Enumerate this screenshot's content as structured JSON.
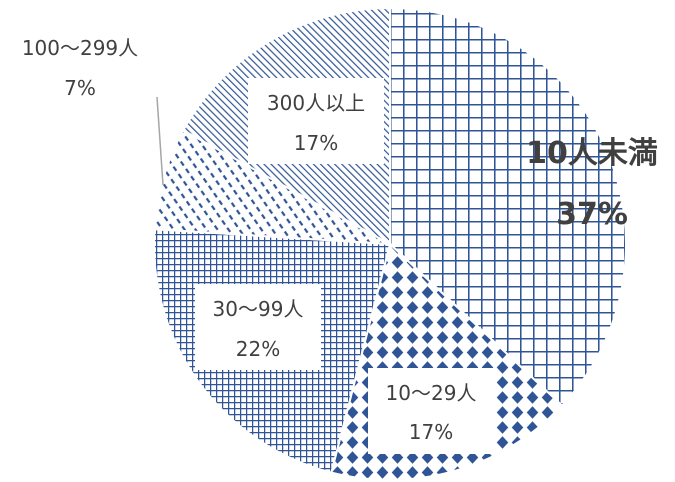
{
  "chart_data": {
    "type": "pie",
    "title": "",
    "start_angle_deg": 0,
    "direction": "clockwise",
    "slices": [
      {
        "name": "10人未満",
        "label": "10人未満",
        "value": 37,
        "value_label": "37%",
        "pattern": "grid-large",
        "color": "#2f5597"
      },
      {
        "name": "10〜29人",
        "label": "10〜29人",
        "value": 17,
        "value_label": "17%",
        "pattern": "diamonds",
        "color": "#2f5597"
      },
      {
        "name": "30〜99人",
        "label": "30〜99人",
        "value": 22,
        "value_label": "22%",
        "pattern": "grid-small",
        "color": "#2f5597"
      },
      {
        "name": "100〜299人",
        "label": "100〜299人",
        "value": 7,
        "value_label": "7%",
        "pattern": "dashes",
        "color": "#2f5597"
      },
      {
        "name": "300人以上",
        "label": "300人以上",
        "value": 17,
        "value_label": "17%",
        "pattern": "diagonal-dense",
        "color": "#2f5597"
      }
    ],
    "legend": "none"
  }
}
